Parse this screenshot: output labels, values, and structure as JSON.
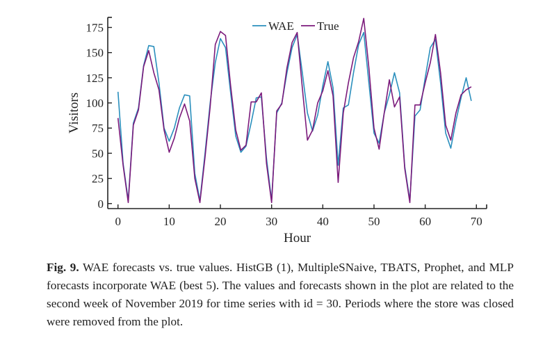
{
  "colors": {
    "wae": "#2a8fbd",
    "true": "#7b1a7b",
    "axis": "#222222"
  },
  "chart_data": {
    "type": "line",
    "title": "",
    "xlabel": "Hour",
    "ylabel": "Visitors",
    "xlim": [
      -2,
      72
    ],
    "ylim": [
      -5,
      185
    ],
    "xticks": [
      0,
      10,
      20,
      30,
      40,
      50,
      60,
      70
    ],
    "yticks": [
      0,
      25,
      50,
      75,
      100,
      125,
      150,
      175
    ],
    "legend_position": "top-center",
    "grid": false,
    "x": [
      0,
      1,
      2,
      3,
      4,
      5,
      6,
      7,
      8,
      9,
      10,
      11,
      12,
      13,
      14,
      15,
      16,
      17,
      18,
      19,
      20,
      21,
      22,
      23,
      24,
      25,
      26,
      27,
      28,
      29,
      30,
      31,
      32,
      33,
      34,
      35,
      36,
      37,
      38,
      39,
      40,
      41,
      42,
      43,
      44,
      45,
      46,
      47,
      48,
      49,
      50,
      51,
      52,
      53,
      54,
      55,
      56,
      57,
      58,
      59,
      60,
      61,
      62,
      63,
      64,
      65,
      66,
      67,
      68,
      69
    ],
    "series": [
      {
        "name": "WAE",
        "color_key": "wae",
        "values": [
          111,
          40,
          3,
          80,
          95,
          137,
          157,
          156,
          120,
          75,
          62,
          75,
          95,
          108,
          107,
          30,
          3,
          50,
          100,
          140,
          164,
          155,
          110,
          67,
          51,
          57,
          80,
          105,
          106,
          45,
          3,
          90,
          100,
          130,
          155,
          168,
          130,
          90,
          72,
          88,
          117,
          141,
          115,
          38,
          95,
          98,
          130,
          158,
          170,
          120,
          70,
          60,
          90,
          108,
          130,
          110,
          37,
          3,
          87,
          93,
          125,
          155,
          163,
          120,
          70,
          55,
          82,
          105,
          125,
          102
        ]
      },
      {
        "name": "True",
        "color_key": "true",
        "values": [
          85,
          38,
          1,
          78,
          93,
          136,
          152,
          130,
          113,
          73,
          51,
          65,
          85,
          99,
          82,
          25,
          1,
          46,
          96,
          158,
          171,
          167,
          117,
          73,
          53,
          58,
          101,
          101,
          110,
          40,
          1,
          92,
          99,
          135,
          160,
          170,
          115,
          63,
          73,
          100,
          112,
          132,
          107,
          21,
          90,
          120,
          145,
          161,
          184,
          135,
          75,
          54,
          90,
          123,
          96,
          106,
          35,
          1,
          98,
          98,
          120,
          140,
          168,
          130,
          78,
          63,
          90,
          108,
          113,
          116
        ]
      }
    ]
  },
  "caption": {
    "label": "Fig. 9.",
    "text": "WAE forecasts vs. true values. HistGB (1), MultipleSNaive, TBATS, Prophet, and MLP forecasts incorporate WAE (best 5). The values and forecasts shown in the plot are related to the second week of November 2019 for time series with id = 30. Periods where the store was closed were removed from the plot."
  }
}
